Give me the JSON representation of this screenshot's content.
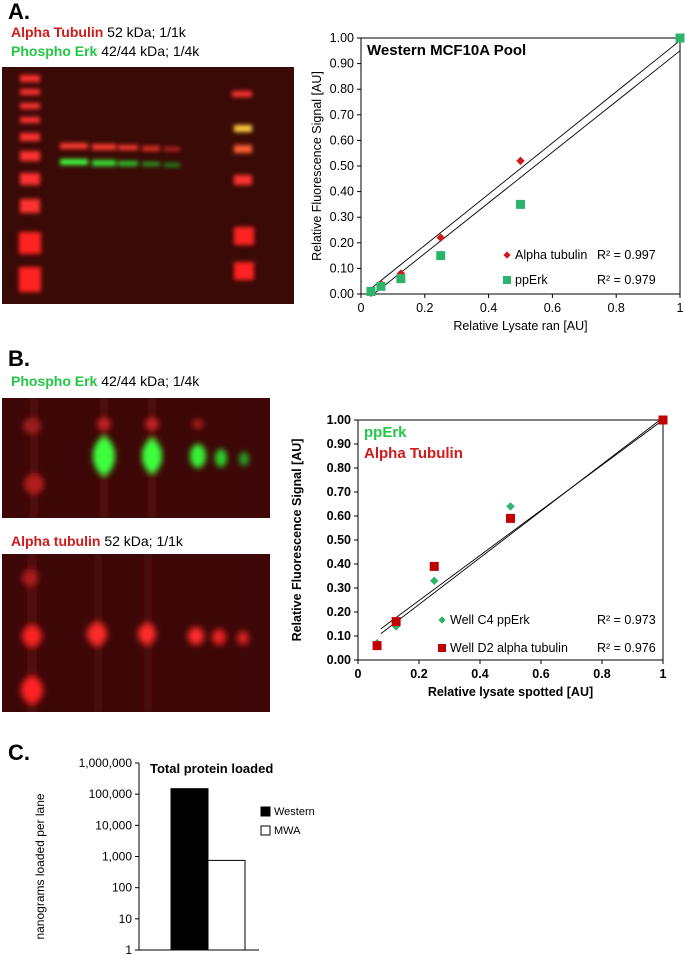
{
  "panels": {
    "a": "A.",
    "b": "B.",
    "c": "C."
  },
  "blot_labels": {
    "a_red_name": "Alpha Tubulin",
    "a_red_detail": " 52 kDa; 1/1k",
    "a_green_name": "Phospho Erk",
    "a_green_detail": " 42/44 kDa; 1/4k",
    "b_green_name": "Phospho Erk",
    "b_green_detail": " 42/44 kDa; 1/4k",
    "b_red_name": "Alpha tubulin",
    "b_red_detail": " 52 kDa; 1/1k"
  },
  "colors": {
    "red": "#d11919",
    "green": "#22c845",
    "darkred": "#c00000",
    "marker_green": "#2db36a"
  },
  "chart_data": [
    {
      "type": "scatter",
      "title": "Western MCF10A Pool",
      "xlabel": "Relative Lysate ran [AU]",
      "ylabel": "Relative Fluorescence Signal [AU]",
      "xlim": [
        0,
        1
      ],
      "ylim": [
        0,
        1
      ],
      "xticks": [
        "0",
        "0.2",
        "0.4",
        "0.6",
        "0.8",
        "1"
      ],
      "yticks": [
        "0.00",
        "0.10",
        "0.20",
        "0.30",
        "0.40",
        "0.50",
        "0.60",
        "0.70",
        "0.80",
        "0.90",
        "1.00"
      ],
      "series": [
        {
          "name": "Alpha tubulin",
          "marker": "diamond",
          "color": "#d11919",
          "x": [
            0.03125,
            0.0625,
            0.125,
            0.25,
            0.5,
            1
          ],
          "y": [
            0.01,
            0.04,
            0.08,
            0.22,
            0.52,
            1.0
          ],
          "r2": "R² = 0.997",
          "fit": [
            [
              0.03,
              0.02
            ],
            [
              1.0,
              0.99
            ]
          ]
        },
        {
          "name": "ppErk",
          "marker": "square",
          "color": "#2db36a",
          "x": [
            0.03125,
            0.0625,
            0.125,
            0.25,
            0.5,
            1
          ],
          "y": [
            0.01,
            0.03,
            0.06,
            0.15,
            0.35,
            1.0
          ],
          "r2": "R² = 0.979",
          "fit": [
            [
              0.03,
              -0.01
            ],
            [
              1.0,
              0.95
            ]
          ]
        }
      ],
      "legend": "bottom-right"
    },
    {
      "type": "scatter",
      "title": "",
      "xlabel": "Relative lysate spotted [AU]",
      "ylabel": "Relative Fluorescence Signal [AU]",
      "xlim": [
        0,
        1
      ],
      "ylim": [
        0,
        1
      ],
      "xticks": [
        "0",
        "0.2",
        "0.4",
        "0.6",
        "0.8",
        "1"
      ],
      "yticks": [
        "0.00",
        "0.10",
        "0.20",
        "0.30",
        "0.40",
        "0.50",
        "0.60",
        "0.70",
        "0.80",
        "0.90",
        "1.00"
      ],
      "header_labels": [
        {
          "text": "ppErk",
          "color": "#22c845"
        },
        {
          "text": "Alpha Tubulin",
          "color": "#d11919"
        }
      ],
      "series": [
        {
          "name": "Well C4 ppErk",
          "marker": "diamond",
          "color": "#2db36a",
          "x": [
            0.0625,
            0.125,
            0.25,
            0.5,
            1
          ],
          "y": [
            0.07,
            0.14,
            0.33,
            0.64,
            1.0
          ],
          "r2": "R² = 0.973",
          "fit": [
            [
              0.075,
              0.13
            ],
            [
              1.0,
              1.0
            ]
          ]
        },
        {
          "name": "Well D2 alpha tubulin",
          "marker": "square",
          "color": "#c00000",
          "x": [
            0.0625,
            0.125,
            0.25,
            0.5,
            1
          ],
          "y": [
            0.06,
            0.16,
            0.39,
            0.59,
            1.0
          ],
          "r2": "R² = 0.976",
          "fit": [
            [
              0.075,
              0.11
            ],
            [
              1.0,
              1.01
            ]
          ]
        }
      ],
      "legend": "bottom-right"
    },
    {
      "type": "bar",
      "title": "Total protein loaded",
      "ylabel": "nanograms loaded per lane",
      "yscale": "log",
      "ylim": [
        1,
        1000000
      ],
      "yticks": [
        "1,000,000",
        "100,000",
        "10,000",
        "1,000",
        "100",
        "10",
        "1"
      ],
      "series": [
        {
          "name": "Western",
          "value": 150000,
          "color": "#000000"
        },
        {
          "name": "MWA",
          "value": 750,
          "color": "#ffffff"
        }
      ],
      "legend": "right"
    }
  ]
}
